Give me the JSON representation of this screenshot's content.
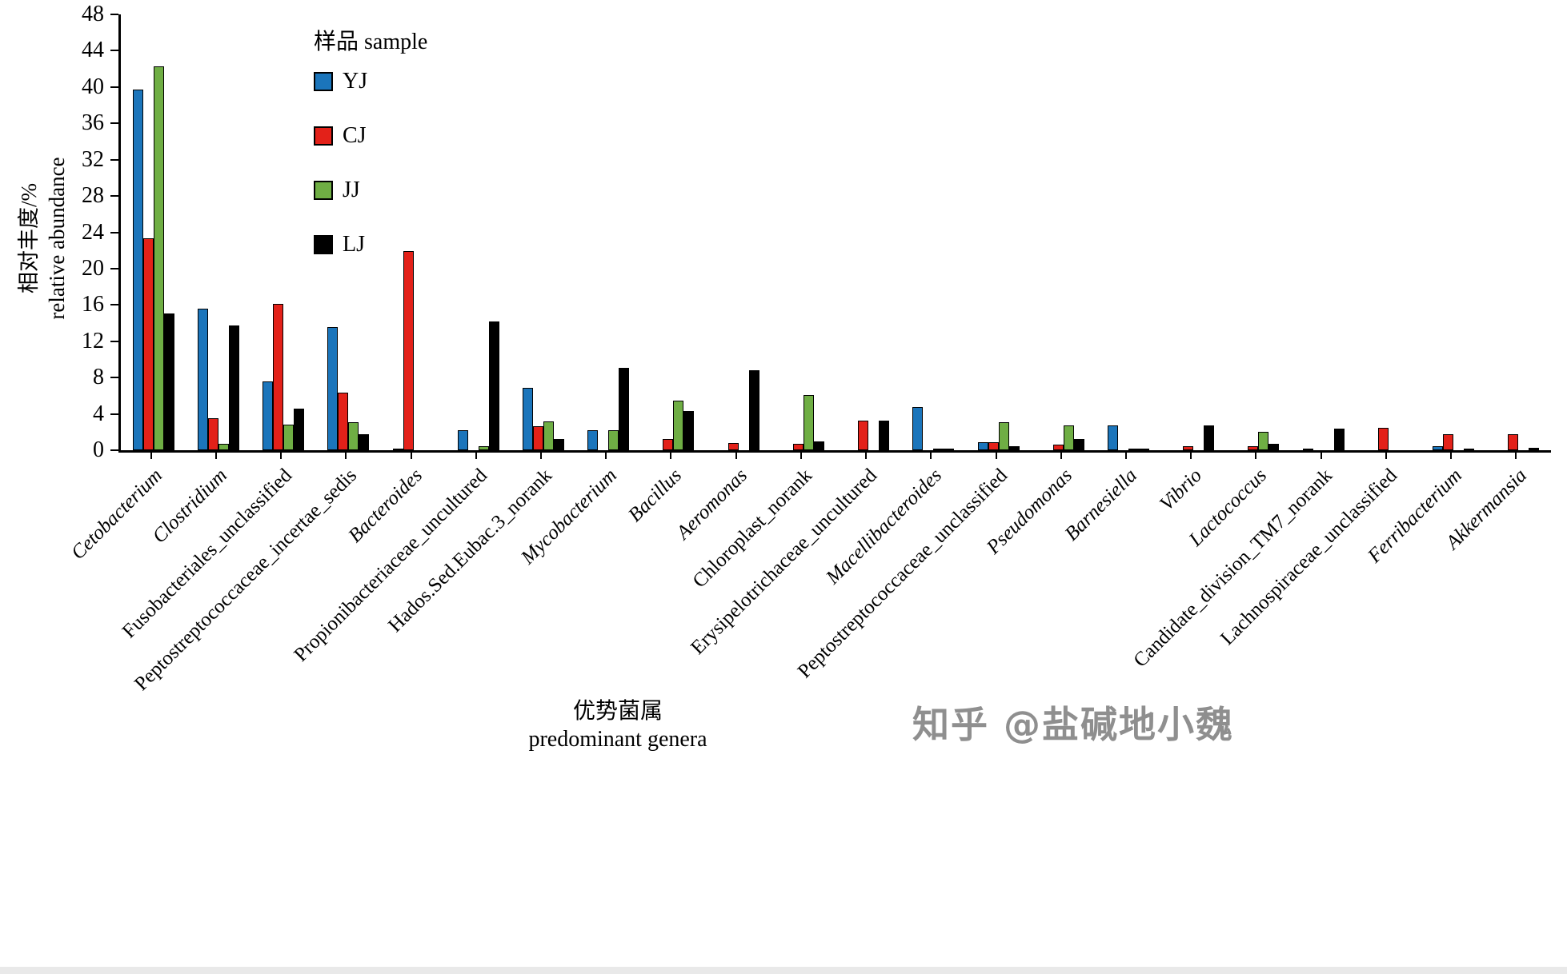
{
  "figure": {
    "y_axis_title_zh": "相对丰度/%",
    "y_axis_title_en": "relative abundance",
    "x_axis_title_zh": "优势菌属",
    "x_axis_title_en": "predominant genera",
    "legend_title": "样品 sample",
    "watermark": "知乎 @盐碱地小魏"
  },
  "chart_data": {
    "type": "bar",
    "title": "",
    "ylabel": "相对丰度/% relative abundance",
    "xlabel": "优势菌属 predominant genera",
    "ylim": [
      0,
      48
    ],
    "ytick_step": 4,
    "grid": false,
    "legend_position": "upper-left-inside",
    "categories": [
      "Cetobacterium",
      "Clostridium",
      "Fusobacteriales_unclassified",
      "Peptostreptococcaceae_incertae_sedis",
      "Bacteroides",
      "Propionibacteriaceae_uncultured",
      "Hados.Sed.Eubac.3_norank",
      "Mycobacterium",
      "Bacillus",
      "Aeromonas",
      "Chloroplast_norank",
      "Erysipelotrichaceae_uncultured",
      "Macellibacteroides",
      "Peptostreptococcaceae_unclassified",
      "Pseudomonas",
      "Barnesiella",
      "Vibrio",
      "Lactococcus",
      "Candidate_division_TM7_norank",
      "Lachnospiraceae_unclassified",
      "Ferribacterium",
      "Akkermansia"
    ],
    "categories_italic": [
      1,
      1,
      0,
      0,
      1,
      0,
      0,
      1,
      1,
      1,
      0,
      0,
      1,
      0,
      1,
      1,
      1,
      1,
      0,
      0,
      1,
      1
    ],
    "series": [
      {
        "name": "YJ",
        "color": "#1b75bb",
        "values": [
          39.7,
          15.6,
          7.6,
          13.6,
          0.2,
          2.2,
          6.9,
          2.2,
          0,
          0,
          0,
          0,
          4.8,
          0.9,
          0,
          2.7,
          0,
          0,
          0.2,
          0,
          0.4,
          0
        ]
      },
      {
        "name": "CJ",
        "color": "#e32119",
        "values": [
          23.3,
          3.5,
          16.1,
          6.3,
          21.9,
          0,
          2.6,
          0,
          1.2,
          0.8,
          0.7,
          3.3,
          0,
          0.9,
          0.6,
          0,
          0.4,
          0.4,
          0,
          2.5,
          1.8,
          1.8
        ]
      },
      {
        "name": "JJ",
        "color": "#6fae44",
        "values": [
          42.3,
          0.7,
          2.8,
          3.1,
          0,
          0.4,
          3.2,
          2.2,
          5.5,
          0,
          6.1,
          0,
          0.15,
          3.1,
          2.7,
          0.15,
          0,
          2.0,
          0,
          0,
          0,
          0
        ]
      },
      {
        "name": "LJ",
        "color": "#000000",
        "values": [
          15.1,
          13.7,
          4.6,
          1.8,
          0,
          14.2,
          1.2,
          9.1,
          4.3,
          8.8,
          1.0,
          3.3,
          0.15,
          0.4,
          1.2,
          0.2,
          2.7,
          0.7,
          2.4,
          0,
          0.15,
          0.3
        ]
      }
    ]
  }
}
